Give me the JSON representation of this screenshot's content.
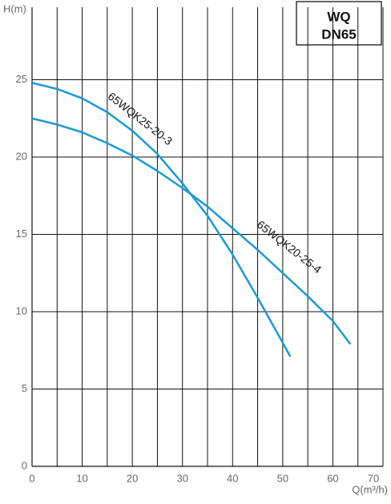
{
  "chart_data": {
    "type": "line",
    "badge": [
      "WQ",
      "DN65"
    ],
    "ylabel": "H(m)",
    "xlabel": "Q(m³/h)",
    "xlim": [
      0,
      70
    ],
    "xticks": [
      0,
      10,
      20,
      30,
      40,
      50,
      60,
      70
    ],
    "ylim": [
      0,
      30
    ],
    "yticks": [
      0,
      5,
      10,
      15,
      20,
      25
    ],
    "xgrid": [
      5,
      10,
      15,
      20,
      25,
      30,
      35,
      40,
      45,
      50,
      55,
      60,
      65,
      70
    ],
    "grid": true,
    "series": [
      {
        "name": "65WQK25-20-3",
        "color": "#1a9ad6",
        "x": [
          0,
          5,
          10,
          15,
          20,
          25,
          30,
          35,
          40,
          45,
          50,
          51.5
        ],
        "values": [
          24.8,
          24.4,
          23.8,
          22.9,
          21.7,
          20.2,
          18.3,
          16.2,
          13.7,
          10.9,
          8.0,
          7.1
        ]
      },
      {
        "name": "65WQK20-25-4",
        "color": "#1a9ad6",
        "x": [
          0,
          5,
          10,
          15,
          20,
          25,
          30,
          35,
          40,
          45,
          50,
          55,
          60,
          63.5
        ],
        "values": [
          22.5,
          22.1,
          21.6,
          20.9,
          20.1,
          19.1,
          18.0,
          16.8,
          15.4,
          14.0,
          12.5,
          11.0,
          9.4,
          7.9
        ]
      }
    ]
  }
}
